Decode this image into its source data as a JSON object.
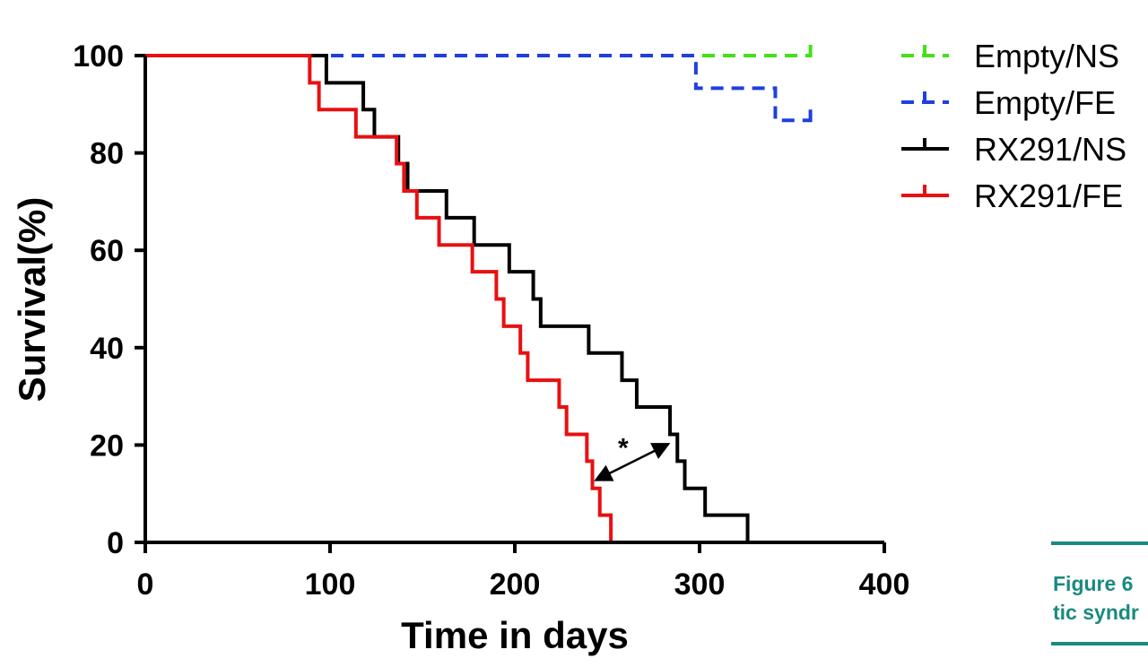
{
  "chart_data": {
    "type": "line",
    "subtype": "kaplan-meier",
    "title": "",
    "xlabel": "Time in days",
    "ylabel": "Survival(%)",
    "xlim": [
      0,
      400
    ],
    "ylim": [
      0,
      100
    ],
    "xticks": [
      "0",
      "100",
      "200",
      "300",
      "400"
    ],
    "yticks": [
      "0",
      "20",
      "40",
      "60",
      "80",
      "100"
    ],
    "grid": false,
    "legend_position": "top-right",
    "series": [
      {
        "name": "Empty/NS",
        "color": "#44e01a",
        "dash": true,
        "x": [
          0,
          360
        ],
        "y": [
          100,
          100
        ],
        "censored_x": [
          360
        ]
      },
      {
        "name": "Empty/FE",
        "color": "#1f3fe0",
        "dash": true,
        "x": [
          0,
          298,
          341,
          360
        ],
        "y": [
          100,
          93.3,
          86.7,
          86.7
        ],
        "censored_x": [
          360
        ]
      },
      {
        "name": "RX291/NS",
        "color": "#000000",
        "dash": false,
        "x": [
          0,
          98,
          118,
          124,
          137,
          142,
          163,
          178,
          197,
          210,
          214,
          240,
          258,
          266,
          284,
          288,
          292,
          303,
          326
        ],
        "y": [
          100,
          94.4,
          88.9,
          83.3,
          77.8,
          72.2,
          66.7,
          61.1,
          55.6,
          50.0,
          44.4,
          38.9,
          33.3,
          27.8,
          22.2,
          16.7,
          11.1,
          5.6,
          0
        ],
        "censored_x": []
      },
      {
        "name": "RX291/FE",
        "color": "#e81010",
        "dash": false,
        "x": [
          0,
          89,
          94,
          114,
          136,
          140,
          147,
          159,
          177,
          190,
          194,
          203,
          207,
          224,
          228,
          239,
          242,
          246,
          252
        ],
        "y": [
          100,
          94.4,
          88.9,
          83.3,
          77.8,
          72.2,
          66.7,
          61.1,
          55.6,
          50.0,
          44.4,
          38.9,
          33.3,
          27.8,
          22.2,
          16.7,
          11.1,
          5.6,
          0
        ],
        "censored_x": []
      }
    ],
    "annotations": [
      {
        "text": "*",
        "arrow_from": [
          245,
          13
        ],
        "arrow_to": [
          282,
          20
        ]
      }
    ]
  },
  "caption": {
    "line1": "Figure 6",
    "line2": "tic syndr"
  },
  "colors": {
    "caption_accent": "#1a8a80"
  }
}
